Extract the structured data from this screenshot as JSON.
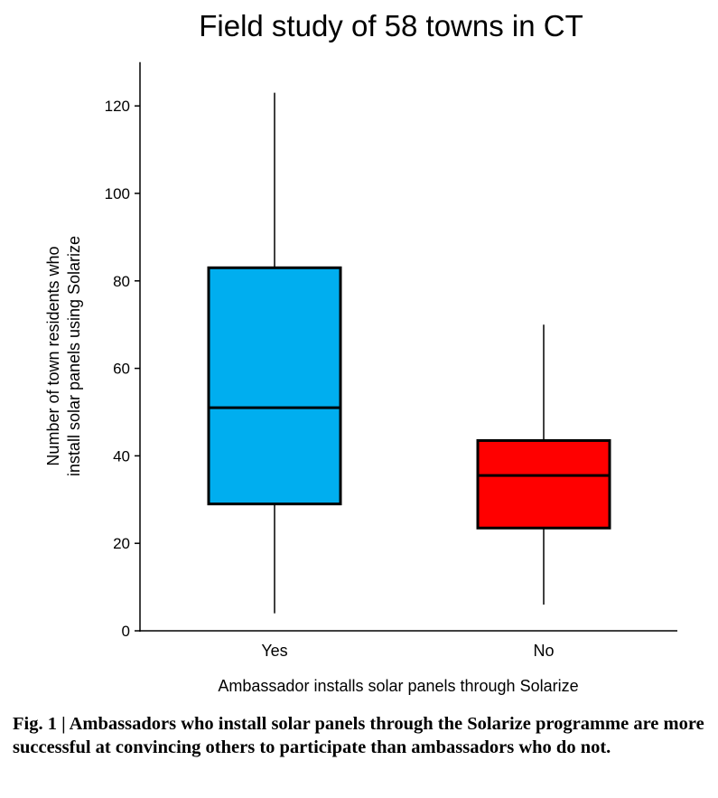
{
  "chart_data": {
    "type": "box",
    "title": "Field study of 58 towns in CT",
    "xlabel": "Ambassador installs solar panels through Solarize",
    "ylabel_lines": [
      "Number of town residents who",
      "install solar panels using Solarize"
    ],
    "ylim": [
      0,
      130
    ],
    "yticks": [
      0,
      20,
      40,
      60,
      80,
      100,
      120
    ],
    "categories": [
      "Yes",
      "No"
    ],
    "boxes": [
      {
        "category": "Yes",
        "min": 4,
        "q1": 29,
        "median": 51,
        "q3": 83,
        "max": 123,
        "color": "#00AEEF"
      },
      {
        "category": "No",
        "min": 6,
        "q1": 23.5,
        "median": 35.5,
        "q3": 43.5,
        "max": 70,
        "color": "#FF0000"
      }
    ],
    "grid": false,
    "legend": "none"
  },
  "caption": {
    "label": "Fig. 1 |",
    "text": "Ambassadors who install solar panels through the Solarize programme are more successful at convincing others to participate than ambassadors who do not."
  }
}
